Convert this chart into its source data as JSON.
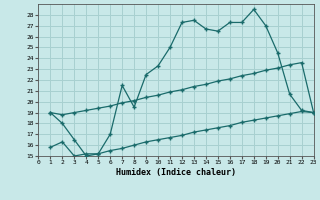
{
  "xlabel": "Humidex (Indice chaleur)",
  "background_color": "#c8e8e8",
  "grid_color": "#a8d0d0",
  "line_color": "#1a6b6b",
  "ylim": [
    15,
    29
  ],
  "xlim": [
    0,
    23
  ],
  "yticks": [
    15,
    16,
    17,
    18,
    19,
    20,
    21,
    22,
    23,
    24,
    25,
    26,
    27,
    28
  ],
  "xticks": [
    0,
    1,
    2,
    3,
    4,
    5,
    6,
    7,
    8,
    9,
    10,
    11,
    12,
    13,
    14,
    15,
    16,
    17,
    18,
    19,
    20,
    21,
    22,
    23
  ],
  "line1_x": [
    1,
    2,
    3,
    4,
    5,
    6,
    7,
    8,
    9,
    10,
    11,
    12,
    13,
    14,
    15,
    16,
    17,
    18,
    19,
    20,
    21,
    22,
    23
  ],
  "line1_y": [
    19.0,
    18.0,
    16.5,
    15.0,
    15.2,
    17.0,
    21.5,
    19.5,
    22.5,
    23.3,
    25.0,
    27.3,
    27.5,
    26.7,
    26.5,
    27.3,
    27.3,
    28.5,
    27.0,
    24.5,
    20.7,
    19.2,
    19.0
  ],
  "line2_x": [
    1,
    2,
    3,
    4,
    5,
    6,
    7,
    8,
    9,
    10,
    11,
    12,
    13,
    14,
    15,
    16,
    17,
    18,
    19,
    20,
    21,
    22,
    23
  ],
  "line2_y": [
    19.0,
    18.8,
    19.0,
    19.2,
    19.4,
    19.6,
    19.9,
    20.1,
    20.4,
    20.6,
    20.9,
    21.1,
    21.4,
    21.6,
    21.9,
    22.1,
    22.4,
    22.6,
    22.9,
    23.1,
    23.4,
    23.6,
    19.0
  ],
  "line3_x": [
    1,
    2,
    3,
    4,
    5,
    6,
    7,
    8,
    9,
    10,
    11,
    12,
    13,
    14,
    15,
    16,
    17,
    18,
    19,
    20,
    21,
    22,
    23
  ],
  "line3_y": [
    15.8,
    16.3,
    15.0,
    15.2,
    15.2,
    15.5,
    15.7,
    16.0,
    16.3,
    16.5,
    16.7,
    16.9,
    17.2,
    17.4,
    17.6,
    17.8,
    18.1,
    18.3,
    18.5,
    18.7,
    18.9,
    19.1,
    19.0
  ]
}
